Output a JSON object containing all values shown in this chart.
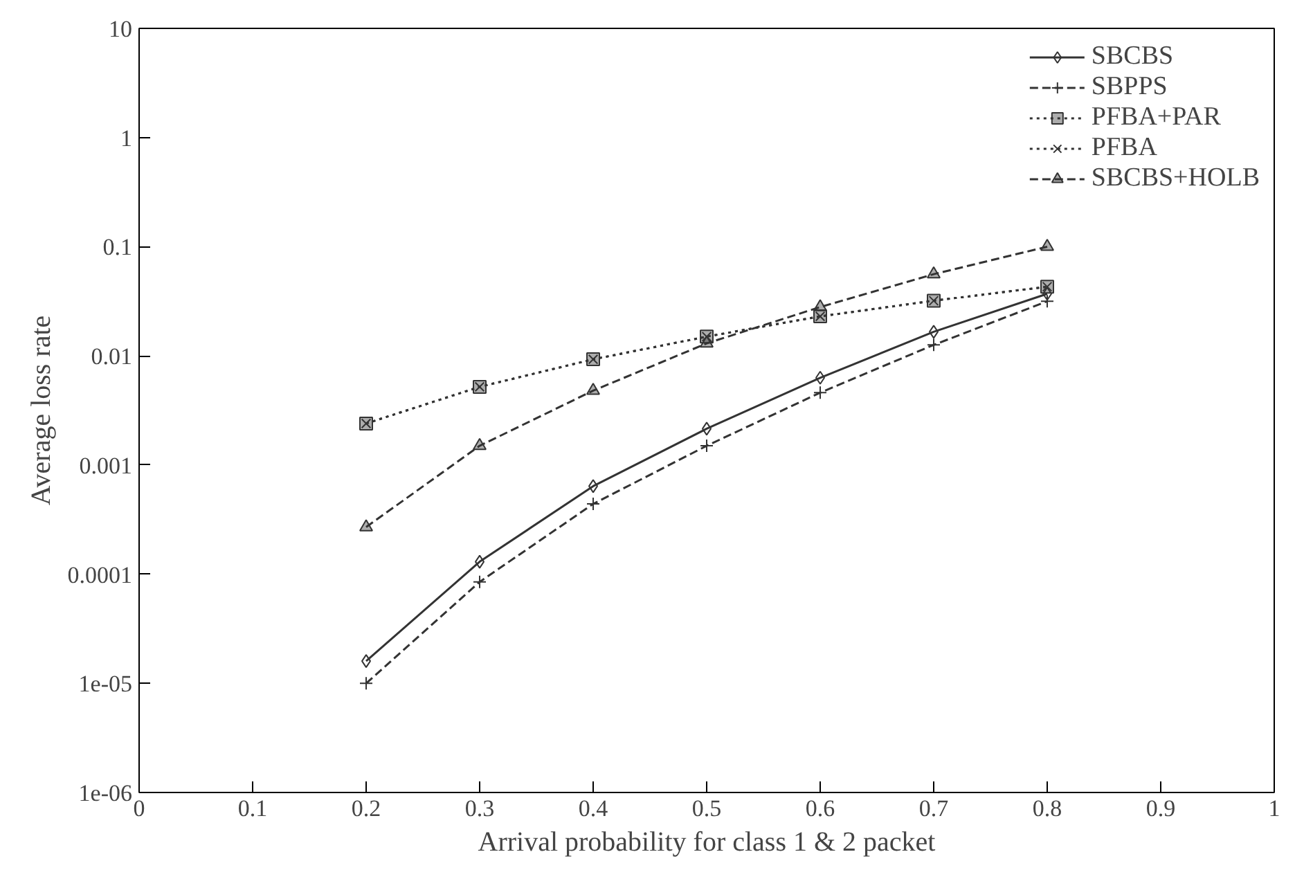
{
  "chart_data": {
    "type": "line",
    "xlabel": "Arrival probability for class 1 & 2 packet",
    "ylabel": "Average loss rate",
    "x": [
      0.2,
      0.3,
      0.4,
      0.5,
      0.6,
      0.7,
      0.8
    ],
    "series": [
      {
        "name": "SBCBS",
        "color": "#333333",
        "marker": "diamond",
        "line_style": "solid",
        "values": [
          1.6e-05,
          0.00013,
          0.00064,
          0.00215,
          0.0063,
          0.0166,
          0.037
        ]
      },
      {
        "name": "SBPPS",
        "color": "#333333",
        "marker": "cross",
        "line_style": "dashed",
        "values": [
          1e-05,
          8.5e-05,
          0.00044,
          0.0015,
          0.0046,
          0.0126,
          0.0316
        ]
      },
      {
        "name": "PFBA+PAR",
        "color": "#333333",
        "marker": "square",
        "line_style": "dotted",
        "values": [
          0.0024,
          0.0052,
          0.0093,
          0.015,
          0.023,
          0.032,
          0.043
        ]
      },
      {
        "name": "PFBA",
        "color": "#333333",
        "marker": "x",
        "line_style": "dotted",
        "values": [
          0.0024,
          0.0052,
          0.0093,
          0.015,
          0.023,
          0.032,
          0.043
        ]
      },
      {
        "name": "SBCBS+HOLB",
        "color": "#333333",
        "marker": "triangle",
        "line_style": "dashed",
        "values": [
          0.00027,
          0.0015,
          0.0048,
          0.013,
          0.028,
          0.056,
          0.1
        ]
      }
    ],
    "log": "y",
    "grid": false,
    "legend": "top right",
    "xlim": [
      0,
      1
    ],
    "xticks": [
      0,
      0.1,
      0.2,
      0.3,
      0.4,
      0.5,
      0.6,
      0.7,
      0.8,
      0.9,
      1
    ],
    "ylim": [
      1e-06,
      10
    ],
    "yticks": [
      {
        "value": 1e-06,
        "label": "1e-06"
      },
      {
        "value": 1e-05,
        "label": "1e-05"
      },
      0.0001,
      0.001,
      0.01,
      0.1,
      1,
      10
    ]
  }
}
